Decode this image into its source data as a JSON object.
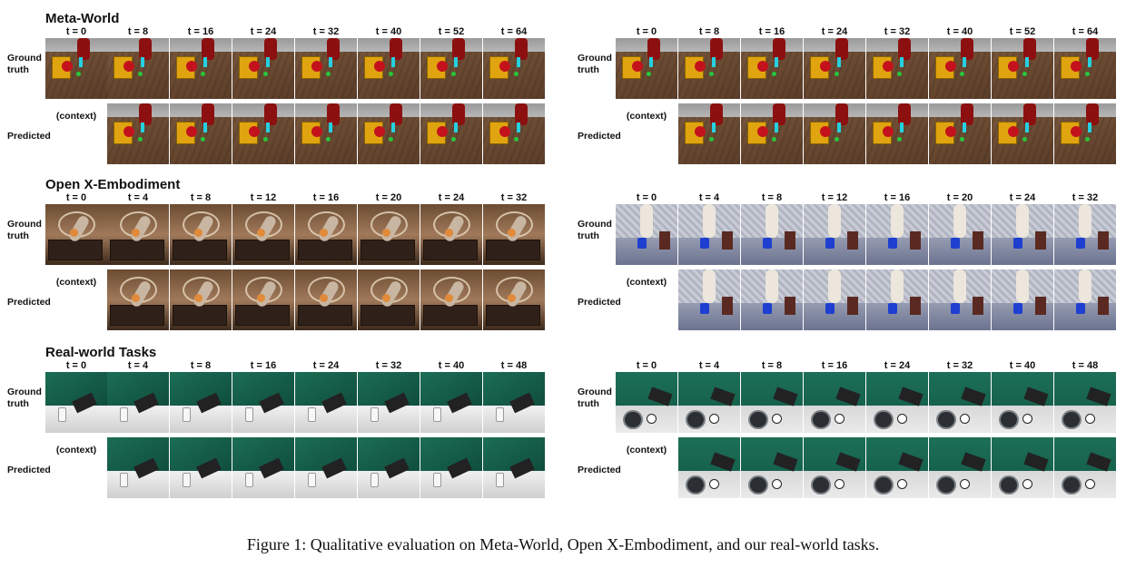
{
  "sections": [
    {
      "title": "Meta-World",
      "left_times": [
        "t = 0",
        "t = 8",
        "t = 16",
        "t = 24",
        "t = 32",
        "t = 40",
        "t = 52",
        "t = 64"
      ],
      "right_times": [
        "t = 0",
        "t = 8",
        "t = 16",
        "t = 24",
        "t = 32",
        "t = 40",
        "t = 52",
        "t = 64"
      ]
    },
    {
      "title": "Open X-Embodiment",
      "left_times": [
        "t = 0",
        "t = 4",
        "t = 8",
        "t = 12",
        "t = 16",
        "t = 20",
        "t = 24",
        "t = 32"
      ],
      "right_times": [
        "t = 0",
        "t = 4",
        "t = 8",
        "t = 12",
        "t = 16",
        "t = 20",
        "t = 24",
        "t = 32"
      ]
    },
    {
      "title": "Real-world Tasks",
      "left_times": [
        "t = 0",
        "t = 4",
        "t = 8",
        "t = 16",
        "t = 24",
        "t = 32",
        "t = 40",
        "t = 48"
      ],
      "right_times": [
        "t = 0",
        "t = 4",
        "t = 8",
        "t = 16",
        "t = 24",
        "t = 32",
        "t = 40",
        "t = 48"
      ]
    }
  ],
  "labels": {
    "ground_truth_line1": "Ground",
    "ground_truth_line2": "truth",
    "predicted": "Predicted",
    "context": "(context)"
  },
  "caption": "Figure 1: Qualitative evaluation on Meta-World, Open X-Embodiment, and our real-world tasks."
}
